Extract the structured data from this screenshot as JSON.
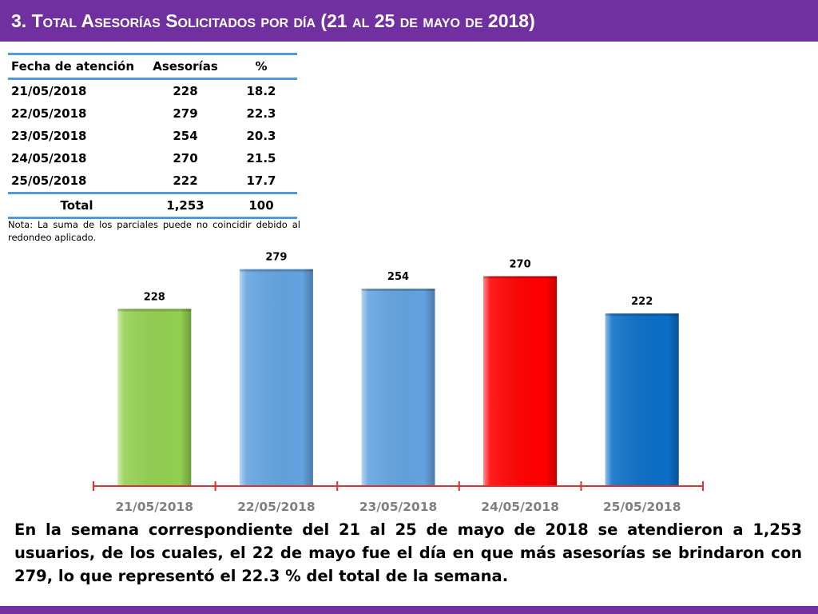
{
  "header": {
    "title": "3.  Total Asesorías Solicitados por día  (21 al 25 de mayo de 2018)"
  },
  "table": {
    "headers": [
      "Fecha de atención",
      "Asesorías",
      "%"
    ],
    "rows": [
      {
        "date": "21/05/2018",
        "count": "228",
        "pct": "18.2"
      },
      {
        "date": "22/05/2018",
        "count": "279",
        "pct": "22.3"
      },
      {
        "date": "23/05/2018",
        "count": "254",
        "pct": "20.3"
      },
      {
        "date": "24/05/2018",
        "count": "270",
        "pct": "21.5"
      },
      {
        "date": "25/05/2018",
        "count": "222",
        "pct": "17.7"
      }
    ],
    "total": {
      "label": "Total",
      "count": "1,253",
      "pct": "100"
    }
  },
  "note": "Nota: La suma de los parciales puede no coincidir debido al redondeo aplicado.",
  "chart_data": {
    "type": "bar",
    "categories": [
      "21/05/2018",
      "22/05/2018",
      "23/05/2018",
      "24/05/2018",
      "25/05/2018"
    ],
    "values": [
      228,
      279,
      254,
      270,
      222
    ],
    "data_labels": [
      "228",
      "279",
      "254",
      "270",
      "222"
    ],
    "colors": [
      "#92d050",
      "#63a3e0",
      "#63a3e0",
      "#ff0000",
      "#0b6fc6"
    ],
    "axis_color": "#e03030",
    "ylim": [
      0,
      290
    ],
    "grid": false,
    "legend": false
  },
  "summary": "En la semana correspondiente del 21 al 25 de mayo de 2018 se atendieron a 1,253 usuarios, de los cuales, el 22 de mayo fue el día en que más asesorías se brindaron con 279, lo que representó el 22.3 % del total de la semana."
}
